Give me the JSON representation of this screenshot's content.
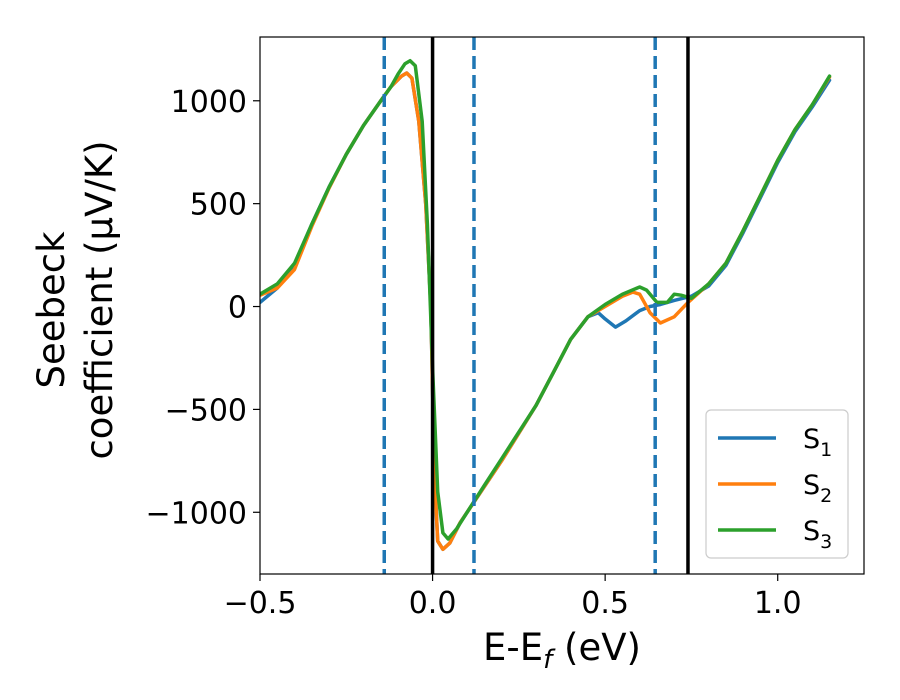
{
  "chart_data": {
    "type": "line",
    "xlabel": "E-E$_f$ (eV)",
    "ylabel_lines": [
      "Seebeck",
      "coefficient  (μV/K)"
    ],
    "xlim": [
      -0.5,
      1.25
    ],
    "ylim": [
      -1300,
      1310
    ],
    "x_ticks": [
      -0.5,
      0.0,
      0.5,
      1.0
    ],
    "x_tick_labels": [
      "−0.5",
      "0.0",
      "0.5",
      "1.0"
    ],
    "y_ticks": [
      1000,
      500,
      0,
      -500,
      -1000
    ],
    "y_tick_labels": [
      "1000",
      "500",
      "0",
      "−500",
      "−1000"
    ],
    "grid": false,
    "legend_position": "lower-right",
    "vertical_lines": [
      {
        "x": -0.14,
        "style": "dashed",
        "color": "#1f77b4"
      },
      {
        "x": 0.0,
        "style": "solid",
        "color": "#000000"
      },
      {
        "x": 0.12,
        "style": "dashed",
        "color": "#1f77b4"
      },
      {
        "x": 0.645,
        "style": "dashed",
        "color": "#1f77b4"
      },
      {
        "x": 0.74,
        "style": "solid",
        "color": "#000000"
      }
    ],
    "series": [
      {
        "name": "S",
        "sub": "1",
        "color": "#1f77b4",
        "points": [
          [
            -0.5,
            20
          ],
          [
            -0.45,
            90
          ],
          [
            -0.4,
            200
          ],
          [
            -0.35,
            400
          ],
          [
            -0.3,
            580
          ],
          [
            -0.25,
            740
          ],
          [
            -0.2,
            880
          ],
          [
            -0.15,
            1000
          ],
          [
            -0.12,
            1070
          ],
          [
            -0.09,
            1120
          ],
          [
            -0.075,
            1135
          ],
          [
            -0.06,
            1110
          ],
          [
            -0.04,
            900
          ],
          [
            -0.02,
            500
          ],
          [
            -0.005,
            0
          ],
          [
            0.005,
            -800
          ],
          [
            0.015,
            -1140
          ],
          [
            0.03,
            -1180
          ],
          [
            0.05,
            -1150
          ],
          [
            0.08,
            -1050
          ],
          [
            0.12,
            -950
          ],
          [
            0.2,
            -750
          ],
          [
            0.3,
            -480
          ],
          [
            0.35,
            -320
          ],
          [
            0.4,
            -160
          ],
          [
            0.45,
            -50
          ],
          [
            0.48,
            -30
          ],
          [
            0.5,
            -60
          ],
          [
            0.53,
            -100
          ],
          [
            0.56,
            -70
          ],
          [
            0.6,
            -20
          ],
          [
            0.63,
            0
          ],
          [
            0.66,
            10
          ],
          [
            0.7,
            30
          ],
          [
            0.75,
            50
          ],
          [
            0.8,
            100
          ],
          [
            0.85,
            200
          ],
          [
            0.9,
            360
          ],
          [
            0.95,
            530
          ],
          [
            1.0,
            700
          ],
          [
            1.05,
            850
          ],
          [
            1.1,
            970
          ],
          [
            1.15,
            1100
          ]
        ]
      },
      {
        "name": "S",
        "sub": "2",
        "color": "#ff7f0e",
        "points": [
          [
            -0.5,
            55
          ],
          [
            -0.45,
            90
          ],
          [
            -0.4,
            180
          ],
          [
            -0.35,
            390
          ],
          [
            -0.3,
            575
          ],
          [
            -0.25,
            740
          ],
          [
            -0.2,
            880
          ],
          [
            -0.15,
            1000
          ],
          [
            -0.12,
            1070
          ],
          [
            -0.09,
            1120
          ],
          [
            -0.075,
            1135
          ],
          [
            -0.06,
            1110
          ],
          [
            -0.04,
            900
          ],
          [
            -0.02,
            500
          ],
          [
            -0.005,
            0
          ],
          [
            0.005,
            -800
          ],
          [
            0.015,
            -1140
          ],
          [
            0.03,
            -1180
          ],
          [
            0.05,
            -1150
          ],
          [
            0.08,
            -1050
          ],
          [
            0.12,
            -950
          ],
          [
            0.2,
            -750
          ],
          [
            0.3,
            -480
          ],
          [
            0.35,
            -320
          ],
          [
            0.4,
            -160
          ],
          [
            0.45,
            -50
          ],
          [
            0.5,
            0
          ],
          [
            0.55,
            50
          ],
          [
            0.58,
            70
          ],
          [
            0.6,
            60
          ],
          [
            0.63,
            -30
          ],
          [
            0.66,
            -80
          ],
          [
            0.7,
            -50
          ],
          [
            0.74,
            20
          ],
          [
            0.8,
            110
          ],
          [
            0.85,
            210
          ],
          [
            0.9,
            370
          ],
          [
            0.95,
            540
          ],
          [
            1.0,
            710
          ],
          [
            1.05,
            860
          ],
          [
            1.1,
            980
          ],
          [
            1.15,
            1115
          ]
        ]
      },
      {
        "name": "S",
        "sub": "3",
        "color": "#2ca02c",
        "points": [
          [
            -0.5,
            60
          ],
          [
            -0.45,
            110
          ],
          [
            -0.4,
            210
          ],
          [
            -0.35,
            400
          ],
          [
            -0.3,
            580
          ],
          [
            -0.25,
            740
          ],
          [
            -0.2,
            880
          ],
          [
            -0.15,
            1000
          ],
          [
            -0.12,
            1070
          ],
          [
            -0.1,
            1130
          ],
          [
            -0.08,
            1180
          ],
          [
            -0.065,
            1195
          ],
          [
            -0.05,
            1170
          ],
          [
            -0.03,
            900
          ],
          [
            -0.015,
            400
          ],
          [
            0.0,
            -300
          ],
          [
            0.015,
            -900
          ],
          [
            0.03,
            -1100
          ],
          [
            0.045,
            -1130
          ],
          [
            0.07,
            -1080
          ],
          [
            0.1,
            -1000
          ],
          [
            0.15,
            -870
          ],
          [
            0.2,
            -740
          ],
          [
            0.3,
            -480
          ],
          [
            0.35,
            -320
          ],
          [
            0.4,
            -160
          ],
          [
            0.45,
            -50
          ],
          [
            0.5,
            10
          ],
          [
            0.55,
            60
          ],
          [
            0.6,
            95
          ],
          [
            0.62,
            80
          ],
          [
            0.65,
            20
          ],
          [
            0.68,
            20
          ],
          [
            0.7,
            60
          ],
          [
            0.72,
            55
          ],
          [
            0.75,
            40
          ],
          [
            0.8,
            110
          ],
          [
            0.85,
            210
          ],
          [
            0.9,
            370
          ],
          [
            0.95,
            540
          ],
          [
            1.0,
            710
          ],
          [
            1.05,
            860
          ],
          [
            1.1,
            980
          ],
          [
            1.15,
            1120
          ]
        ]
      }
    ]
  }
}
